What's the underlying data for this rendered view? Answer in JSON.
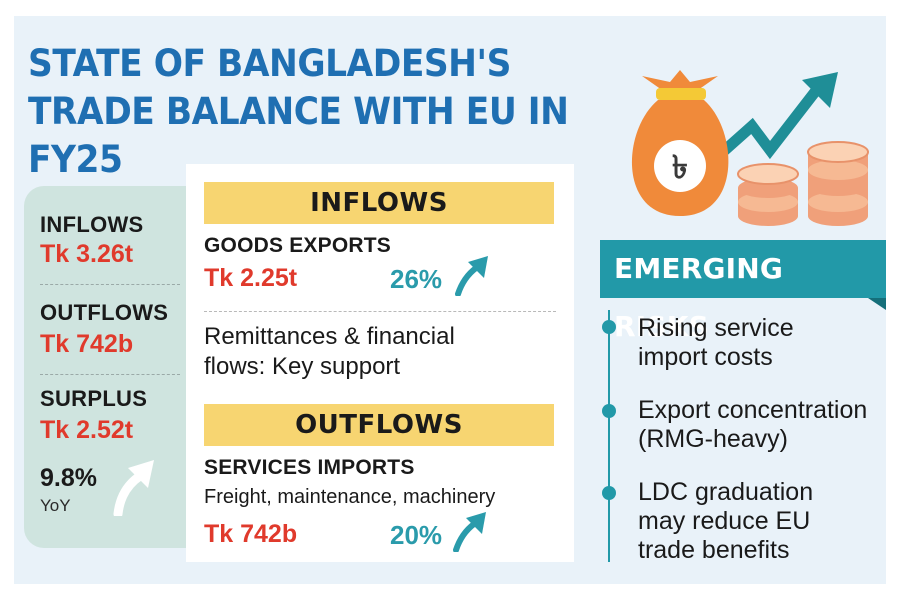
{
  "title": "STATE OF BANGLADESH'S TRADE BALANCE WITH EU IN FY25",
  "summary": {
    "inflows_label": "INFLOWS",
    "inflows_value": "Tk 3.26t",
    "outflows_label": "OUTFLOWS",
    "outflows_value": "Tk 742b",
    "surplus_label": "SURPLUS",
    "surplus_value": "Tk 2.52t",
    "growth_value": "9.8%",
    "growth_label": "YoY"
  },
  "inflows": {
    "heading": "INFLOWS",
    "goods_label": "GOODS EXPORTS",
    "goods_value": "Tk 2.25t",
    "goods_change": "26%",
    "remittance_line1": "Remittances & financial",
    "remittance_line2": "flows: Key support"
  },
  "outflows": {
    "heading": "OUTFLOWS",
    "services_label": "SERVICES IMPORTS",
    "services_detail": "Freight, maintenance, machinery",
    "services_value": "Tk 742b",
    "services_change": "20%"
  },
  "risks": {
    "heading": "EMERGING RISKS",
    "items": [
      {
        "line1": "Rising service",
        "line2": "import costs",
        "line3": ""
      },
      {
        "line1": "Export concentration",
        "line2": "(RMG-heavy)",
        "line3": ""
      },
      {
        "line1": "LDC graduation",
        "line2": "may reduce EU",
        "line3": "trade benefits"
      }
    ]
  },
  "illustration": {
    "currency_symbol": "৳",
    "icon": "money-bag-coins-rising-arrow-icon"
  },
  "colors": {
    "title_blue": "#1f6fb2",
    "value_red": "#e03a2c",
    "teal": "#2299a8",
    "band_yellow": "#f7d571",
    "summary_green": "#cfe4df",
    "background": "#e9f2f9"
  }
}
